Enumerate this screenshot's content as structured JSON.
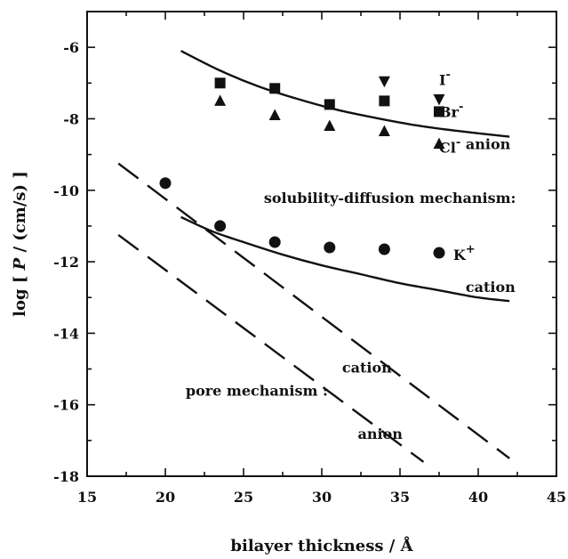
{
  "chart_data": {
    "type": "scatter",
    "title": "",
    "xlabel": "bilayer thickness / Å",
    "ylabel_parts": [
      "log [ ",
      "P",
      " / (cm/s) ]"
    ],
    "xlim": [
      15,
      45
    ],
    "ylim": [
      -18,
      -5
    ],
    "xticks": [
      15,
      20,
      25,
      30,
      35,
      40,
      45
    ],
    "yticks": [
      -18,
      -16,
      -14,
      -12,
      -10,
      -8,
      -6
    ],
    "grid": false,
    "series": [
      {
        "name": "I-",
        "marker": "triangle-down",
        "x": [
          34,
          37.5
        ],
        "y": [
          -6.95,
          -7.45
        ]
      },
      {
        "name": "Br-",
        "marker": "square",
        "x": [
          23.5,
          27,
          30.5,
          34,
          37.5
        ],
        "y": [
          -7.0,
          -7.15,
          -7.6,
          -7.5,
          -7.8
        ]
      },
      {
        "name": "Cl-",
        "marker": "triangle-up",
        "x": [
          23.5,
          27,
          30.5,
          34,
          37.5
        ],
        "y": [
          -7.5,
          -7.9,
          -8.2,
          -8.35,
          -8.7
        ]
      },
      {
        "name": "K+",
        "marker": "circle",
        "x": [
          20,
          23.5,
          27,
          30.5,
          34,
          37.5
        ],
        "y": [
          -9.8,
          -11.0,
          -11.45,
          -11.6,
          -11.65,
          -11.75
        ]
      }
    ],
    "lines": [
      {
        "name": "solubility-diffusion anion",
        "style": "solid",
        "x": [
          21,
          23.5,
          26,
          28.5,
          31,
          33.5,
          36,
          38.5,
          42
        ],
        "y": [
          -6.1,
          -6.65,
          -7.1,
          -7.45,
          -7.75,
          -7.98,
          -8.18,
          -8.33,
          -8.5
        ]
      },
      {
        "name": "solubility-diffusion cation",
        "style": "solid",
        "x": [
          21,
          23,
          25,
          27.5,
          30,
          32.5,
          35,
          37.5,
          40,
          42
        ],
        "y": [
          -10.75,
          -11.15,
          -11.45,
          -11.8,
          -12.1,
          -12.35,
          -12.6,
          -12.8,
          -13.0,
          -13.1
        ]
      },
      {
        "name": "pore cation",
        "style": "dashed",
        "x": [
          17,
          42
        ],
        "y": [
          -9.25,
          -17.5
        ]
      },
      {
        "name": "pore anion",
        "style": "dashed",
        "x": [
          17,
          36.5
        ],
        "y": [
          -11.25,
          -17.6
        ]
      }
    ],
    "annotations": [
      {
        "text": "I",
        "sup": "-",
        "x": 37.5,
        "y": -7.05
      },
      {
        "text": "Br",
        "sup": "-",
        "x": 37.5,
        "y": -7.95
      },
      {
        "text": "Cl",
        "sup": "-",
        "x": 37.5,
        "y": -8.95
      },
      {
        "text": "anion",
        "sup": "",
        "x": 39.2,
        "y": -8.85
      },
      {
        "text": "solubility-diffusion mechanism:",
        "sup": "",
        "x": 26.3,
        "y": -10.35
      },
      {
        "text": "K",
        "sup": "+",
        "x": 38.4,
        "y": -11.95
      },
      {
        "text": "cation",
        "sup": "",
        "x": 39.2,
        "y": -12.85
      },
      {
        "text": "cation",
        "sup": "",
        "x": 31.3,
        "y": -15.1
      },
      {
        "text": "pore mechanism :",
        "sup": "",
        "x": 21.3,
        "y": -15.75
      },
      {
        "text": "anion",
        "sup": "",
        "x": 32.3,
        "y": -16.95
      }
    ]
  }
}
